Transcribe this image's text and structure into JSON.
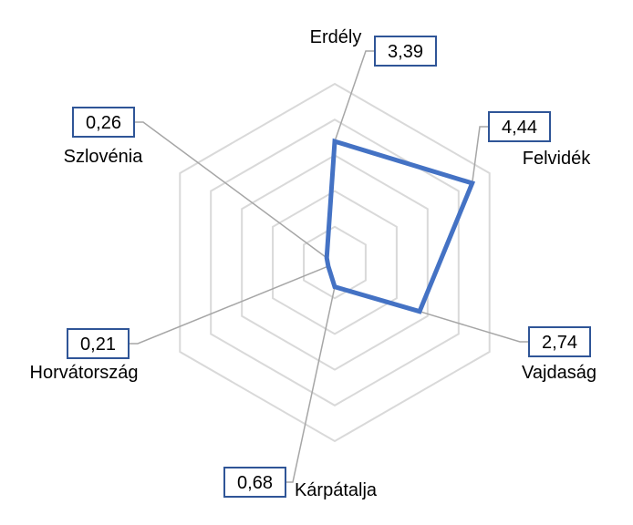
{
  "chart_data": {
    "type": "radar",
    "categories": [
      "Erdély",
      "Felvidék",
      "Vajdaság",
      "Kárpátalja",
      "Horvátország",
      "Szlovénia"
    ],
    "values": [
      3.39,
      4.44,
      2.74,
      0.68,
      0.21,
      0.26
    ],
    "data_labels": [
      "3,39",
      "4,44",
      "2,74",
      "0,68",
      "0,21",
      "0,26"
    ],
    "rlim": [
      0,
      5
    ],
    "grid": true,
    "grid_rings": 5,
    "legend": "none",
    "colors": {
      "series": "#4472C4",
      "grid": "#D9D9D9",
      "leader": "#A6A6A6",
      "label_border": "#2F5597"
    }
  }
}
